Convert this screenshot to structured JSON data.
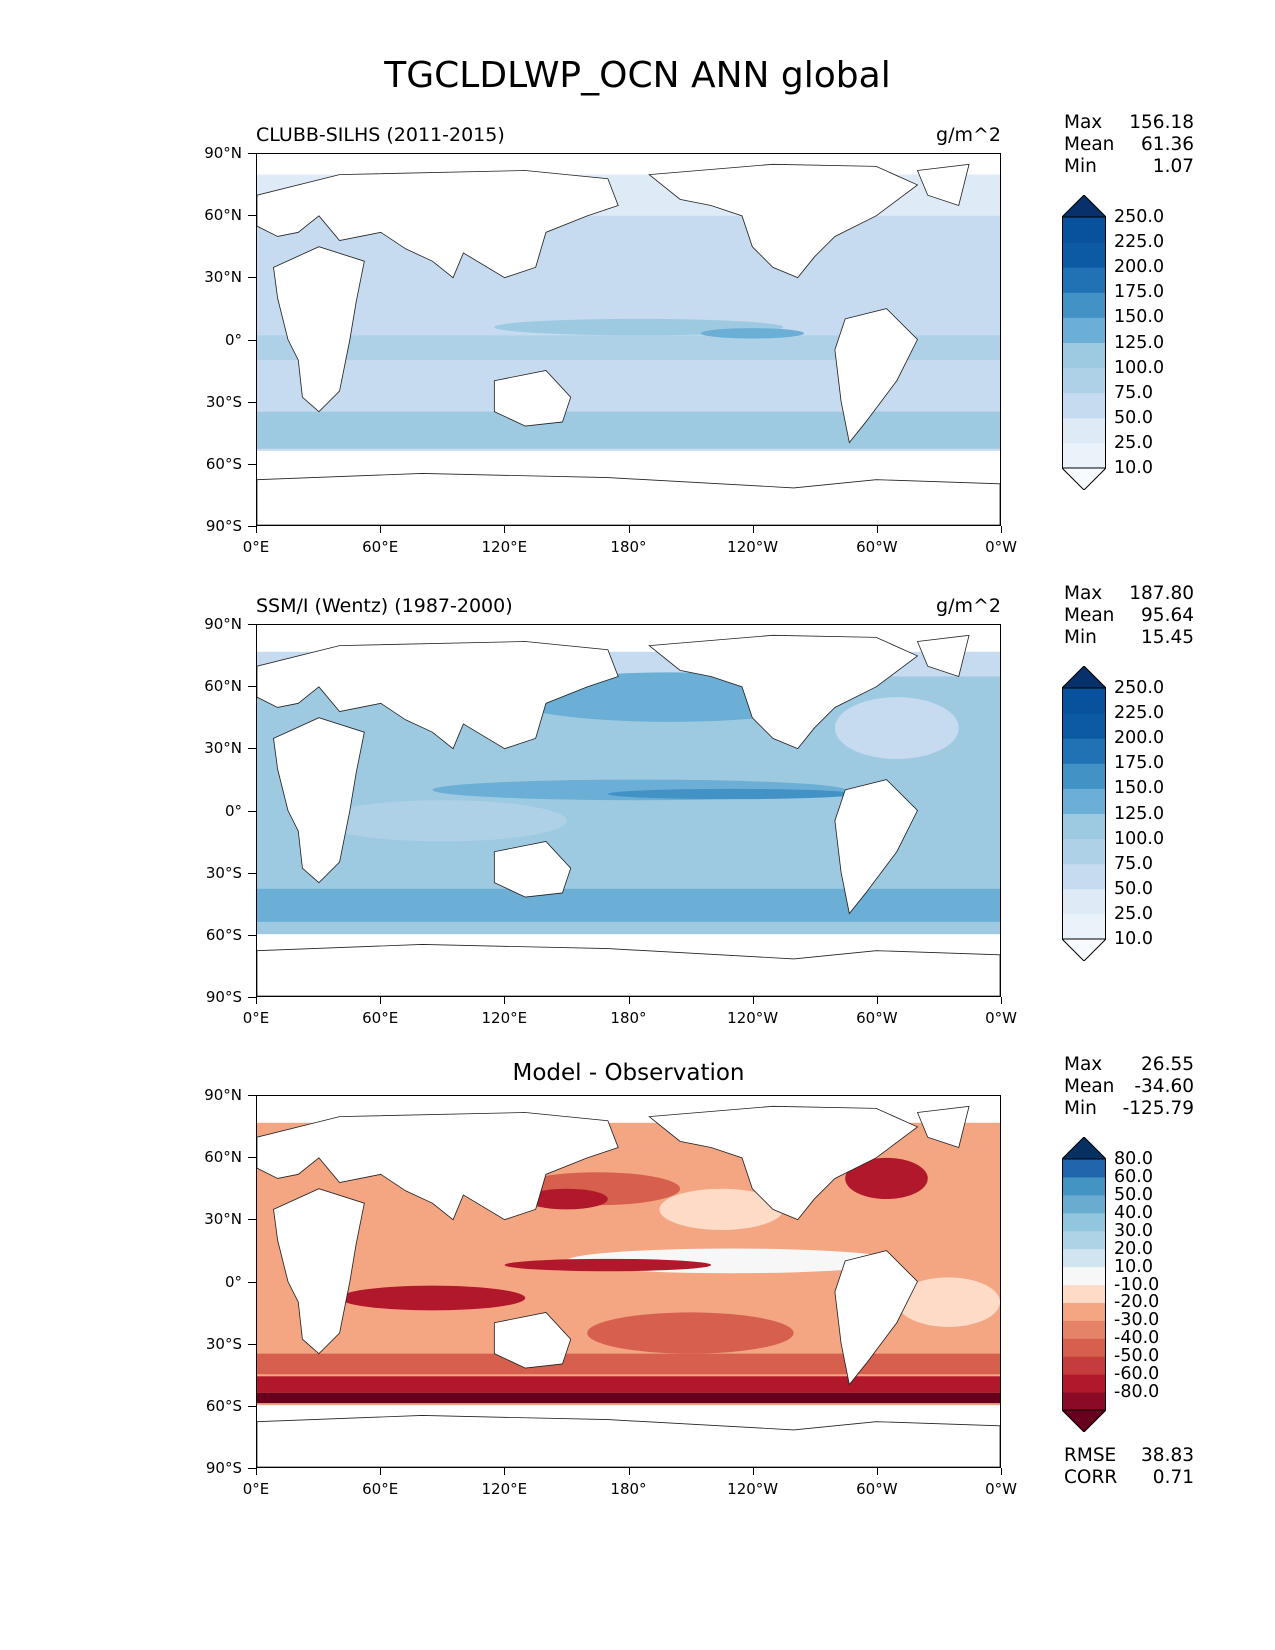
{
  "title": "TGCLDLWP_OCN ANN global",
  "panels": [
    {
      "label": "CLUBB-SILHS (2011-2015)",
      "units": "g/m^2",
      "stats": {
        "max_label": "Max",
        "max": "156.18",
        "mean_label": "Mean",
        "mean": "61.36",
        "min_label": "Min",
        "min": "1.07"
      },
      "colorbar_levels": [
        "250.0",
        "225.0",
        "200.0",
        "175.0",
        "150.0",
        "125.0",
        "100.0",
        "75.0",
        "50.0",
        "25.0",
        "10.0"
      ]
    },
    {
      "label": "SSM/I (Wentz) (1987-2000)",
      "units": "g/m^2",
      "stats": {
        "max_label": "Max",
        "max": "187.80",
        "mean_label": "Mean",
        "mean": "95.64",
        "min_label": "Min",
        "min": "15.45"
      },
      "colorbar_levels": [
        "250.0",
        "225.0",
        "200.0",
        "175.0",
        "150.0",
        "125.0",
        "100.0",
        "75.0",
        "50.0",
        "25.0",
        "10.0"
      ]
    },
    {
      "label": "Model - Observation",
      "stats": {
        "max_label": "Max",
        "max": "26.55",
        "mean_label": "Mean",
        "mean": "-34.60",
        "min_label": "Min",
        "min": "-125.79"
      },
      "colorbar_levels": [
        "80.0",
        "60.0",
        "50.0",
        "40.0",
        "30.0",
        "20.0",
        "10.0",
        "-10.0",
        "-20.0",
        "-30.0",
        "-40.0",
        "-50.0",
        "-60.0",
        "-80.0"
      ],
      "rmse_label": "RMSE",
      "rmse": "38.83",
      "corr_label": "CORR",
      "corr": "0.71"
    }
  ],
  "axes": {
    "lat_ticks": [
      "90°N",
      "60°N",
      "30°N",
      "0°",
      "30°S",
      "60°S",
      "90°S"
    ],
    "lon_ticks": [
      "0°E",
      "60°E",
      "120°E",
      "180°",
      "120°W",
      "60°W",
      "0°W"
    ]
  },
  "colors": {
    "seq": [
      "#f7fbff",
      "#deebf7",
      "#c6dbef",
      "#aed1e7",
      "#9ecae1",
      "#6baed6",
      "#4292c6",
      "#2171b5",
      "#08519c",
      "#08306b"
    ],
    "diff": [
      "#67001f",
      "#b2182b",
      "#d6604d",
      "#f4a582",
      "#fddbc7",
      "#f7f7f7",
      "#d1e5f0",
      "#92c5de",
      "#4393c3",
      "#2166ac",
      "#053061"
    ],
    "land": "#ffffff"
  }
}
